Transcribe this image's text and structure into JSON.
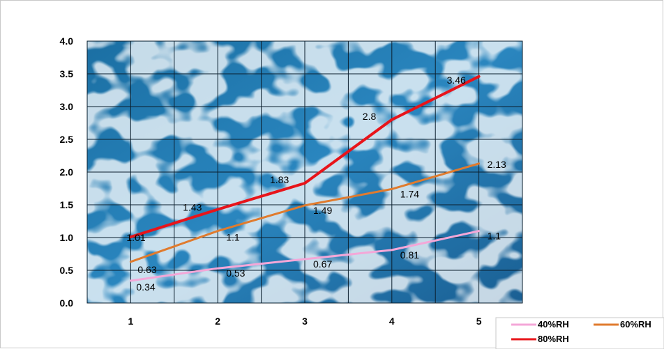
{
  "chart_data": {
    "type": "line",
    "title": "",
    "xlabel": "",
    "ylabel": "",
    "x": [
      1,
      2,
      3,
      4,
      5
    ],
    "x_tick_labels": [
      "1",
      "2",
      "3",
      "4",
      "5"
    ],
    "ylim": [
      0,
      4
    ],
    "y_tick_labels": [
      "0.0",
      "0.5",
      "1.0",
      "1.5",
      "2.0",
      "2.5",
      "3.0",
      "3.5",
      "4.0"
    ],
    "grid": true,
    "legend_position": "bottom-right",
    "series": [
      {
        "name": "40%RH",
        "color": "#f4a7d8",
        "values": [
          0.34,
          0.53,
          0.67,
          0.81,
          1.1
        ],
        "labels": [
          "0.34",
          "0.53",
          "0.67",
          "0.81",
          "1.1"
        ]
      },
      {
        "name": "60%RH",
        "color": "#e07b2e",
        "values": [
          0.63,
          1.1,
          1.49,
          1.74,
          2.13
        ],
        "labels": [
          "0.63",
          "1.1",
          "1.49",
          "1.74",
          "2.13"
        ]
      },
      {
        "name": "80%RH",
        "color": "#e8141a",
        "values": [
          1.01,
          1.43,
          1.83,
          2.8,
          3.46
        ],
        "labels": [
          "1.01",
          "1.43",
          "1.83",
          "2.8",
          "3.46"
        ]
      }
    ],
    "plot_background": "water-texture"
  }
}
